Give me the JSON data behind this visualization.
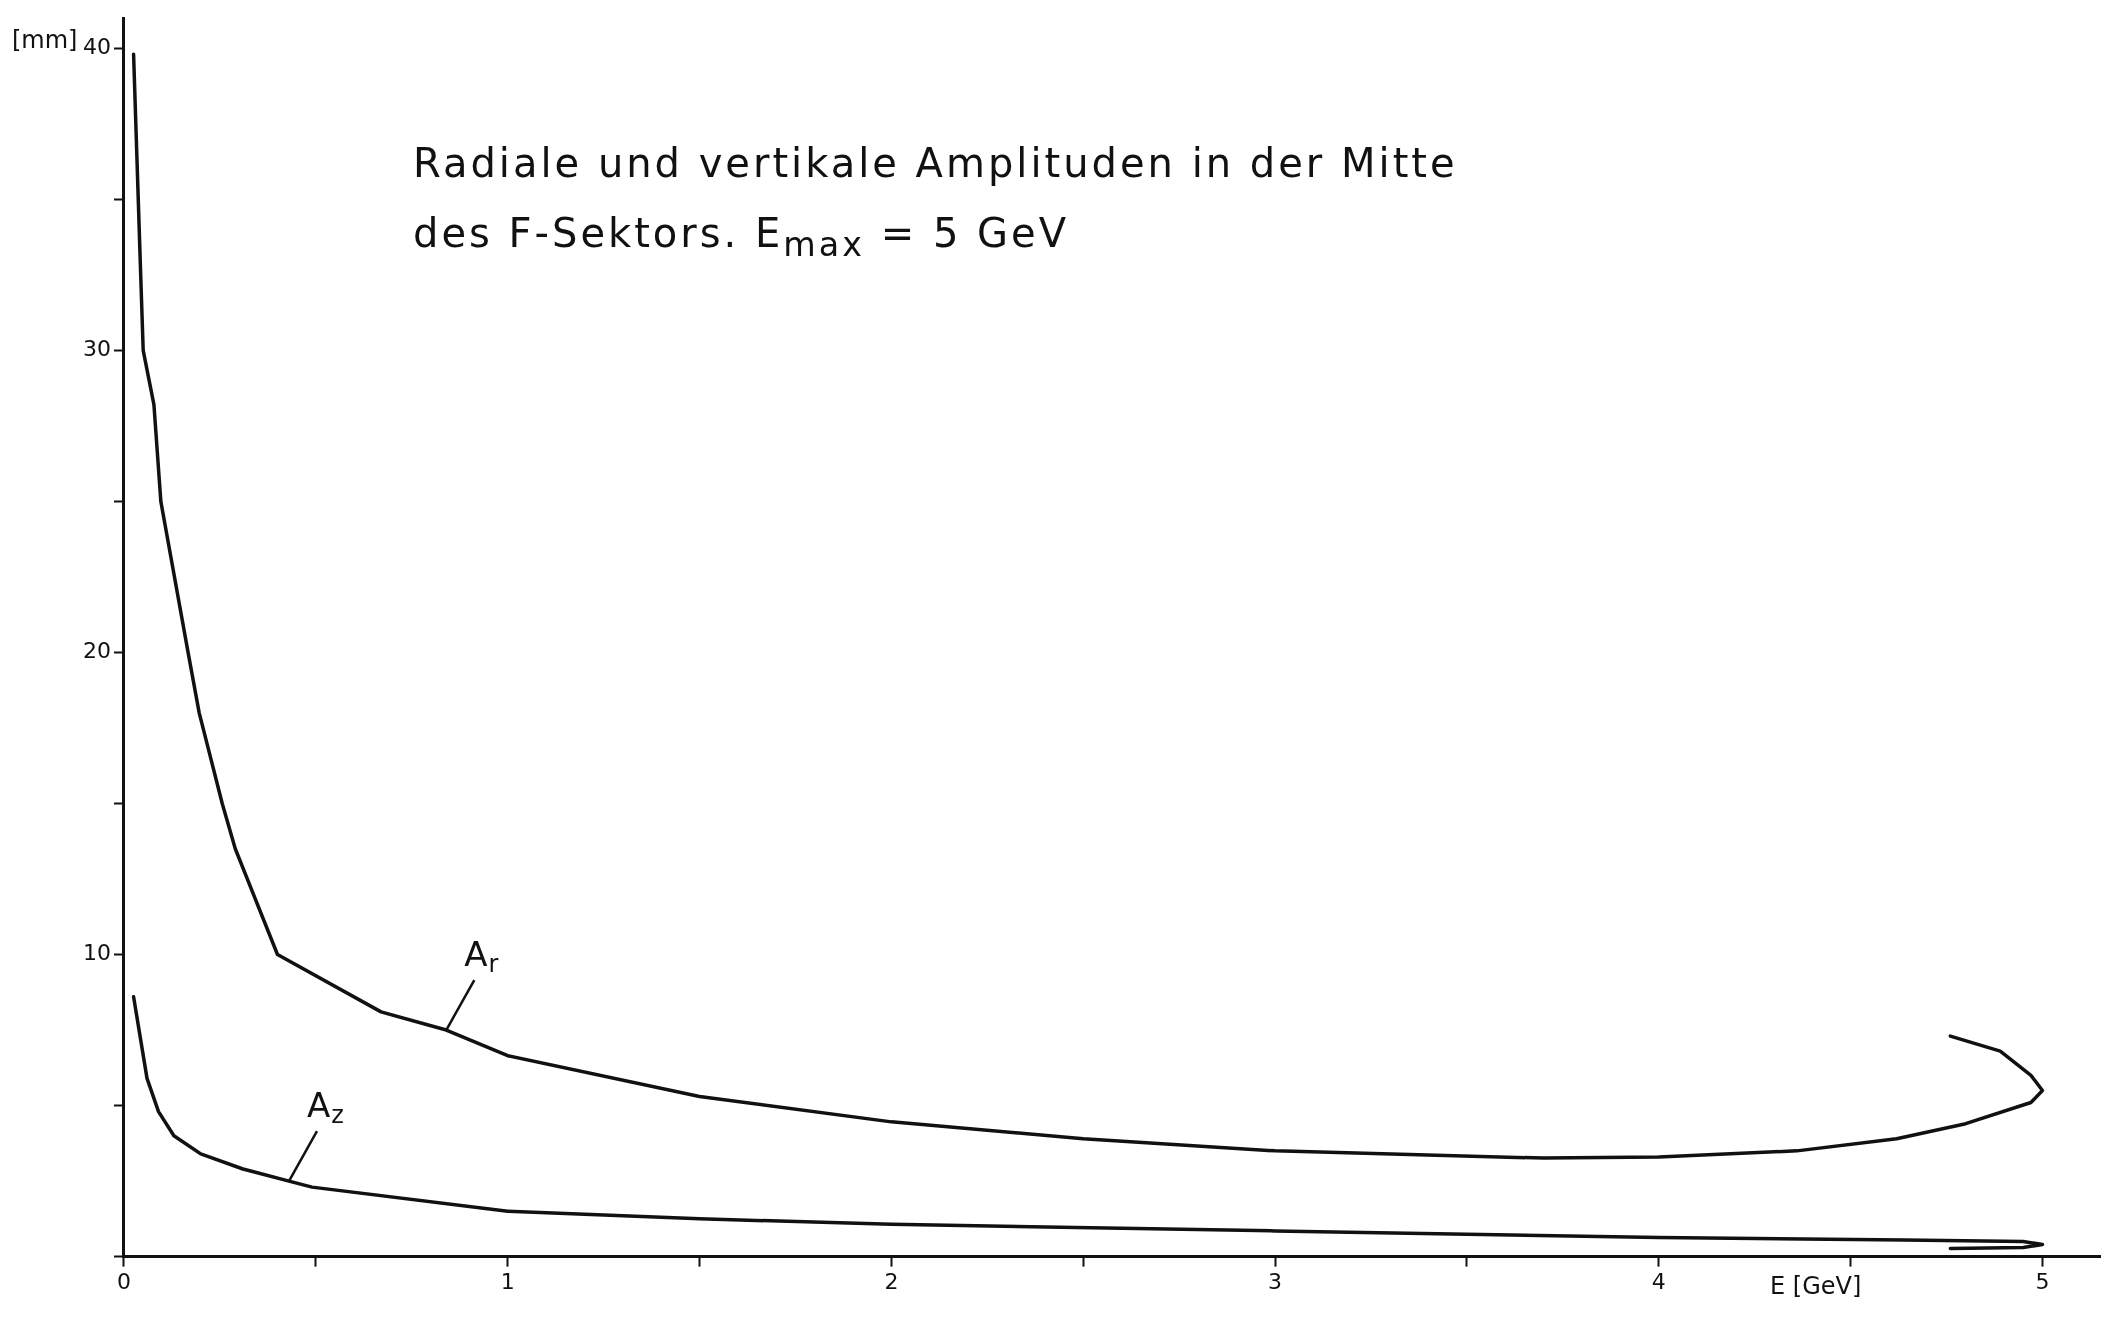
{
  "chart_data": {
    "type": "line",
    "title": "Radiale und vertikale Amplituden in der Mitte",
    "subtitle": "des F-Sektors. E$_{max}$ = 5 GeV",
    "xlabel": "E [GeV]",
    "ylabel": "[mm]",
    "xlim": [
      0,
      5.15
    ],
    "ylim": [
      0,
      41
    ],
    "xticks": [
      0,
      {
        "value": 0.5,
        "label": null
      },
      1,
      {
        "value": 1.5,
        "label": null
      },
      2,
      {
        "value": 2.5,
        "label": null
      },
      3,
      {
        "value": 3.5,
        "label": null
      },
      4,
      {
        "value": 4.5,
        "label": null
      },
      5
    ],
    "yticks": [
      {
        "value": 0,
        "label": null
      },
      {
        "value": 5,
        "label": null
      },
      10,
      {
        "value": 15,
        "label": null
      },
      20,
      {
        "value": 25,
        "label": null
      },
      30,
      {
        "value": 35,
        "label": null
      },
      40
    ],
    "grid": false,
    "legend": false,
    "marker": "none",
    "line_style": "solid",
    "series": [
      {
        "color": "#111111",
        "x": [
          0.025,
          0.043,
          0.05,
          0.078,
          0.096,
          0.167,
          0.196,
          0.256,
          0.29,
          0.4,
          0.67,
          0.84,
          1.0,
          1.5,
          2.0,
          2.5,
          3.0,
          3.7,
          4.0,
          4.36,
          4.62,
          4.8,
          4.97,
          5.0,
          4.97,
          4.89,
          4.76
        ],
        "values": [
          39.8,
          32.7,
          30,
          28.2,
          25,
          20,
          18,
          15,
          13.5,
          10,
          8.1,
          7.5,
          6.65,
          5.3,
          4.46,
          3.9,
          3.5,
          3.26,
          3.3,
          3.5,
          3.9,
          4.4,
          5.1,
          5.5,
          6.0,
          6.8,
          7.3
        ]
      },
      {
        "color": "#111111",
        "x": [
          0.025,
          0.06,
          0.09,
          0.13,
          0.2,
          0.31,
          0.43,
          0.49,
          1.0,
          1.5,
          2.0,
          3.0,
          4.0,
          4.64,
          4.95,
          5.0,
          4.95,
          4.76
        ],
        "values": [
          8.6,
          5.9,
          4.8,
          4.0,
          3.4,
          2.9,
          2.5,
          2.3,
          1.5,
          1.25,
          1.07,
          0.85,
          0.63,
          0.55,
          0.5,
          0.4,
          0.3,
          0.27
        ]
      }
    ],
    "annotations": [
      {
        "text": "A$_{r}$",
        "x": 0.84,
        "y": 7.5
      },
      {
        "text": "A$_{z}$",
        "x": 0.43,
        "y": 2.5
      }
    ]
  }
}
